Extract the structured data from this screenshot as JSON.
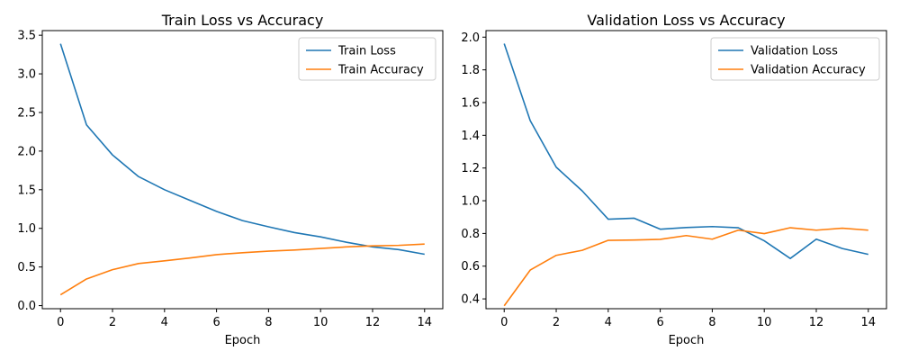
{
  "chart_data": [
    {
      "type": "line",
      "title": "Train Loss vs Accuracy",
      "xlabel": "Epoch",
      "ylabel": "",
      "x": [
        0,
        1,
        2,
        3,
        4,
        5,
        6,
        7,
        8,
        9,
        10,
        11,
        12,
        13,
        14
      ],
      "xlim": [
        -0.7,
        14.7
      ],
      "ylim": [
        -0.04,
        3.56
      ],
      "xticks": [
        0,
        2,
        4,
        6,
        8,
        10,
        12,
        14
      ],
      "yticks": [
        0.0,
        0.5,
        1.0,
        1.5,
        2.0,
        2.5,
        3.0,
        3.5
      ],
      "ytick_labels": [
        "0.0",
        "0.5",
        "1.0",
        "1.5",
        "2.0",
        "2.5",
        "3.0",
        "3.5"
      ],
      "legend_position": "top-right",
      "grid": false,
      "series": [
        {
          "name": "Train Loss",
          "color": "#1f77b4",
          "values": [
            3.39,
            2.34,
            1.95,
            1.67,
            1.5,
            1.36,
            1.22,
            1.1,
            1.02,
            0.945,
            0.89,
            0.82,
            0.76,
            0.725,
            0.665
          ]
        },
        {
          "name": "Train Accuracy",
          "color": "#ff7f0e",
          "values": [
            0.14,
            0.345,
            0.465,
            0.545,
            0.58,
            0.618,
            0.66,
            0.685,
            0.705,
            0.72,
            0.74,
            0.76,
            0.773,
            0.78,
            0.797
          ]
        }
      ]
    },
    {
      "type": "line",
      "title": "Validation Loss vs Accuracy",
      "xlabel": "Epoch",
      "ylabel": "",
      "x": [
        0,
        1,
        2,
        3,
        4,
        5,
        6,
        7,
        8,
        9,
        10,
        11,
        12,
        13,
        14
      ],
      "xlim": [
        -0.7,
        14.7
      ],
      "ylim": [
        0.34,
        2.04
      ],
      "xticks": [
        0,
        2,
        4,
        6,
        8,
        10,
        12,
        14
      ],
      "yticks": [
        0.4,
        0.6,
        0.8,
        1.0,
        1.2,
        1.4,
        1.6,
        1.8,
        2.0
      ],
      "ytick_labels": [
        "0.4",
        "0.6",
        "0.8",
        "1.0",
        "1.2",
        "1.4",
        "1.6",
        "1.8",
        "2.0"
      ],
      "legend_position": "top-right",
      "grid": false,
      "series": [
        {
          "name": "Validation Loss",
          "color": "#1f77b4",
          "values": [
            1.96,
            1.49,
            1.205,
            1.06,
            0.887,
            0.893,
            0.826,
            0.836,
            0.842,
            0.835,
            0.755,
            0.647,
            0.765,
            0.708,
            0.672
          ]
        },
        {
          "name": "Validation Accuracy",
          "color": "#ff7f0e",
          "values": [
            0.358,
            0.576,
            0.666,
            0.697,
            0.758,
            0.76,
            0.764,
            0.787,
            0.765,
            0.82,
            0.799,
            0.835,
            0.82,
            0.832,
            0.82
          ]
        }
      ]
    }
  ]
}
